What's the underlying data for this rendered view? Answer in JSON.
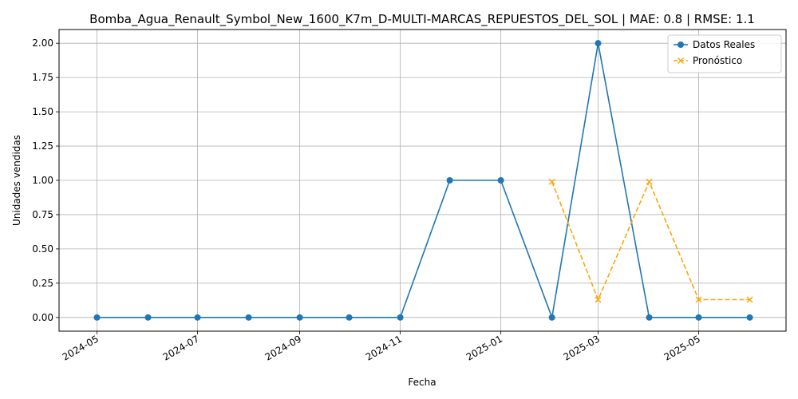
{
  "chart_data": {
    "type": "line",
    "title": "Bomba_Agua_Renault_Symbol_New_1600_K7m_D-MULTI-MARCAS_REPUESTOS_DEL_SOL | MAE: 0.8 | RMSE: 1.1",
    "xlabel": "Fecha",
    "ylabel": "Unidades vendidas",
    "x_ticks": [
      "2024-05",
      "2024-07",
      "2024-09",
      "2024-11",
      "2025-01",
      "2025-03",
      "2025-05"
    ],
    "y_ticks": [
      "0.00",
      "0.25",
      "0.50",
      "0.75",
      "1.00",
      "1.25",
      "1.50",
      "1.75",
      "2.00"
    ],
    "ylim": [
      -0.1,
      2.1
    ],
    "xlim": [
      "2024-04-08",
      "2025-06-23"
    ],
    "grid": true,
    "legend_position": "top-right",
    "series": [
      {
        "name": "Datos Reales",
        "color": "#1f77b4",
        "marker": "circle",
        "line_style": "solid",
        "x": [
          "2024-05-01",
          "2024-06-01",
          "2024-07-01",
          "2024-08-01",
          "2024-09-01",
          "2024-10-01",
          "2024-11-01",
          "2024-12-01",
          "2025-01-01",
          "2025-02-01",
          "2025-03-01",
          "2025-04-01",
          "2025-05-01",
          "2025-06-01"
        ],
        "values": [
          0,
          0,
          0,
          0,
          0,
          0,
          0,
          1,
          1,
          0,
          2,
          0,
          0,
          0
        ]
      },
      {
        "name": "Pronóstico",
        "color": "#ffa500",
        "marker": "x",
        "line_style": "dashed",
        "x": [
          "2025-02-01",
          "2025-03-01",
          "2025-04-01",
          "2025-05-01",
          "2025-06-01"
        ],
        "values": [
          0.99,
          0.13,
          0.99,
          0.13,
          0.13
        ]
      }
    ]
  }
}
